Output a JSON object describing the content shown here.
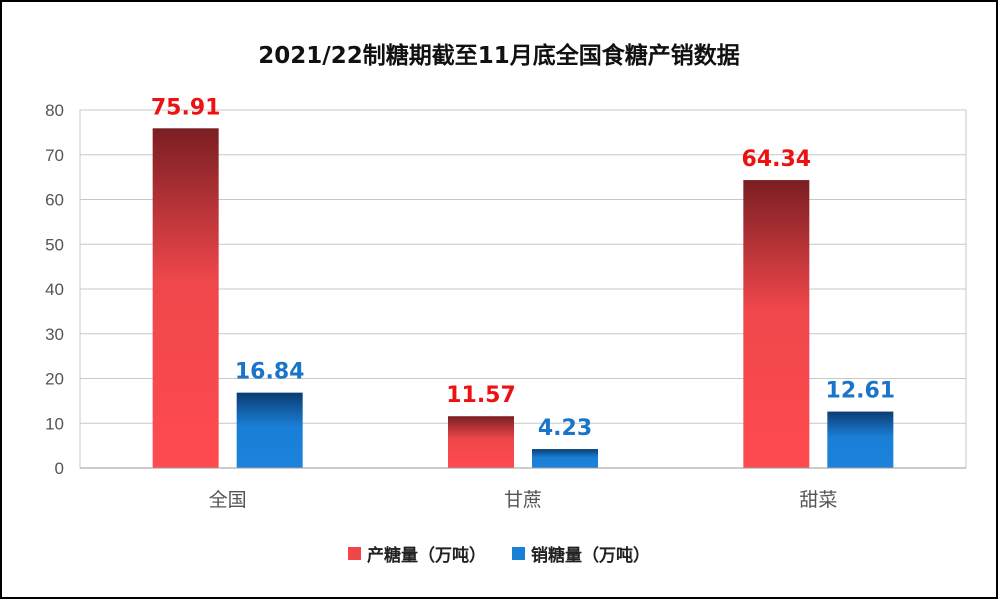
{
  "chart_data": {
    "type": "bar",
    "title": "2021/22制糖期截至11月底全国食糖产销数据",
    "categories": [
      "全国",
      "甘蔗",
      "甜菜"
    ],
    "series": [
      {
        "name": "产糖量（万吨）",
        "values": [
          75.91,
          11.57,
          64.34
        ],
        "color": "#f0464a",
        "label_color": "#ee1111"
      },
      {
        "name": "销糖量（万吨）",
        "values": [
          16.84,
          4.23,
          12.61
        ],
        "color": "#1a7fd6",
        "label_color": "#1a74c8"
      }
    ],
    "ylim": [
      0,
      80
    ],
    "yticks": [
      0,
      10,
      20,
      30,
      40,
      50,
      60,
      70,
      80
    ],
    "grid": true,
    "legend_position": "bottom"
  }
}
